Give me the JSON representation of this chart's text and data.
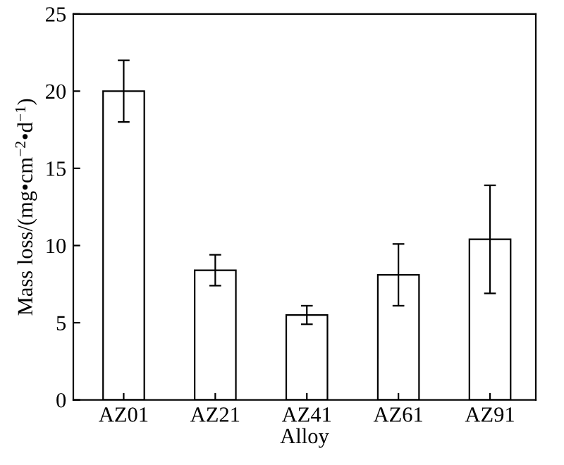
{
  "chart_data": {
    "type": "bar",
    "xlabel": "Alloy",
    "ylabel": "Mass loss/(mg•cm$^{−2}$•d$^{−1}$)",
    "categories": [
      "AZ01",
      "AZ21",
      "AZ41",
      "AZ61",
      "AZ91"
    ],
    "values": [
      20,
      8.4,
      5.5,
      8.1,
      10.4
    ],
    "errors": [
      2,
      1,
      0.6,
      2,
      3.5
    ],
    "color": "#ffffff",
    "ylim": [
      0,
      25
    ],
    "yticks": [
      0,
      5,
      10,
      15,
      20,
      25
    ],
    "grid": false,
    "legend": false
  }
}
